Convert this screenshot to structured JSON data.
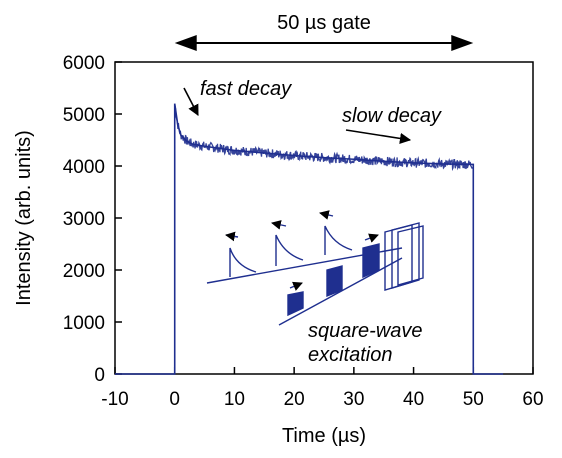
{
  "chart_data": {
    "type": "line",
    "title": "",
    "xlabel": "Time (µs)",
    "ylabel": "Intensity (arb. units)",
    "xlim": [
      -10,
      60
    ],
    "ylim": [
      0,
      6000
    ],
    "xticks": [
      -10,
      0,
      10,
      20,
      30,
      40,
      50,
      60
    ],
    "yticks": [
      0,
      1000,
      2000,
      3000,
      4000,
      5000,
      6000
    ],
    "grid": false,
    "line_color": "#1f2f8f",
    "series": [
      {
        "x": [
          -10,
          0,
          0,
          0.5,
          1,
          2,
          3,
          5,
          10,
          15,
          20,
          25,
          30,
          35,
          40,
          45,
          50,
          50,
          51,
          55
        ],
        "y": [
          0,
          0,
          5200,
          4800,
          4600,
          4480,
          4420,
          4380,
          4300,
          4250,
          4200,
          4160,
          4130,
          4090,
          4060,
          4040,
          4030,
          0,
          0,
          0
        ]
      }
    ],
    "annotations": {
      "gate_label": "50 µs gate",
      "gate_range": [
        0,
        50
      ],
      "fast": "fast decay",
      "slow": "slow decay",
      "excitation_line1": "square-wave",
      "excitation_line2": "excitation"
    }
  }
}
